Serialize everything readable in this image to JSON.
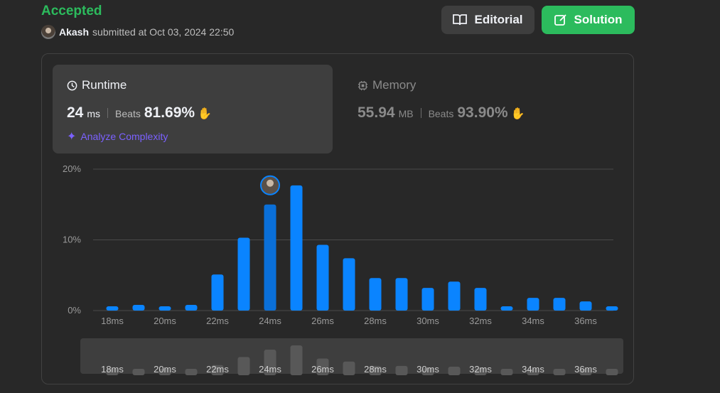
{
  "status": "Accepted",
  "submission": {
    "user": "Akash",
    "text": "submitted at Oct 03, 2024 22:50"
  },
  "buttons": {
    "editorial": "Editorial",
    "solution": "Solution"
  },
  "runtime": {
    "title": "Runtime",
    "value": "24",
    "unit": "ms",
    "beats_label": "Beats",
    "beats": "81.69%"
  },
  "memory": {
    "title": "Memory",
    "value": "55.94",
    "unit": "MB",
    "beats_label": "Beats",
    "beats": "93.90%"
  },
  "analyze": "Analyze Complexity",
  "colors": {
    "accent": "#2cbb5d",
    "bar": "#0a84ff",
    "bar_selected": "#0a6fd8",
    "analyze": "#7b61ff"
  },
  "chart_data": {
    "type": "bar",
    "x": [
      18,
      19,
      20,
      21,
      22,
      23,
      24,
      25,
      26,
      27,
      28,
      29,
      30,
      31,
      32,
      33,
      34,
      35,
      36,
      37
    ],
    "values": [
      0.6,
      0.8,
      0.6,
      0.8,
      5.1,
      10.3,
      15.0,
      17.7,
      9.3,
      7.4,
      4.6,
      4.6,
      3.2,
      4.1,
      3.2,
      0.6,
      1.8,
      1.8,
      1.3,
      0.6
    ],
    "tick_labels": [
      "18ms",
      "20ms",
      "22ms",
      "24ms",
      "26ms",
      "28ms",
      "30ms",
      "32ms",
      "34ms",
      "36ms"
    ],
    "y_ticks": [
      "0%",
      "10%",
      "20%"
    ],
    "ylim": [
      0,
      20
    ],
    "selected": 24,
    "grid": true
  }
}
